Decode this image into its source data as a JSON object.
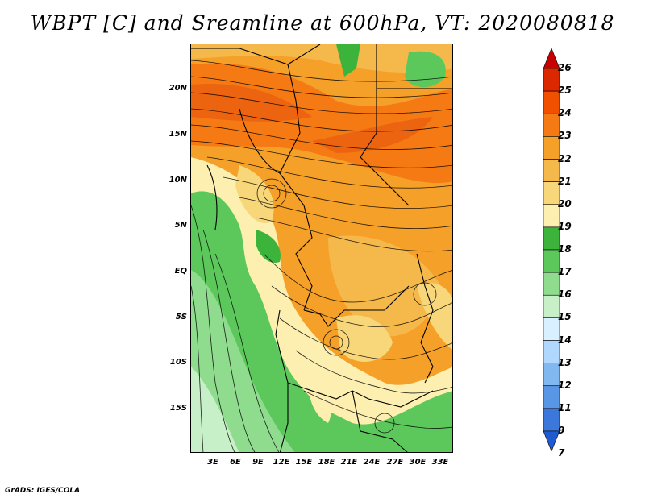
{
  "title": "WBPT [C] and Sreamline at 600hPa, VT: 2020080818",
  "y_axis_labels": [
    "20N",
    "15N",
    "10N",
    "5N",
    "EQ",
    "5S",
    "10S",
    "15S"
  ],
  "x_axis_labels": [
    "3E",
    "6E",
    "9E",
    "12E",
    "15E",
    "18E",
    "21E",
    "24E",
    "27E",
    "30E",
    "33E"
  ],
  "colorbar": {
    "labels": [
      "26",
      "25",
      "24",
      "23",
      "22",
      "21",
      "20",
      "19",
      "18",
      "17",
      "16",
      "15",
      "14",
      "13",
      "12",
      "11",
      "9",
      "7"
    ],
    "colors": [
      "#c80000",
      "#dc2800",
      "#f05000",
      "#f57a14",
      "#f5a028",
      "#f5b84a",
      "#f7d77a",
      "#fcefb0",
      "#3cb43c",
      "#5cc85c",
      "#8fdc8f",
      "#c8f0c8",
      "#d8f0ff",
      "#b0d8ff",
      "#82b8f0",
      "#5a96e6",
      "#3c78dc",
      "#1e5ad2"
    ]
  },
  "footer": "GrADS: IGES/COLA"
}
